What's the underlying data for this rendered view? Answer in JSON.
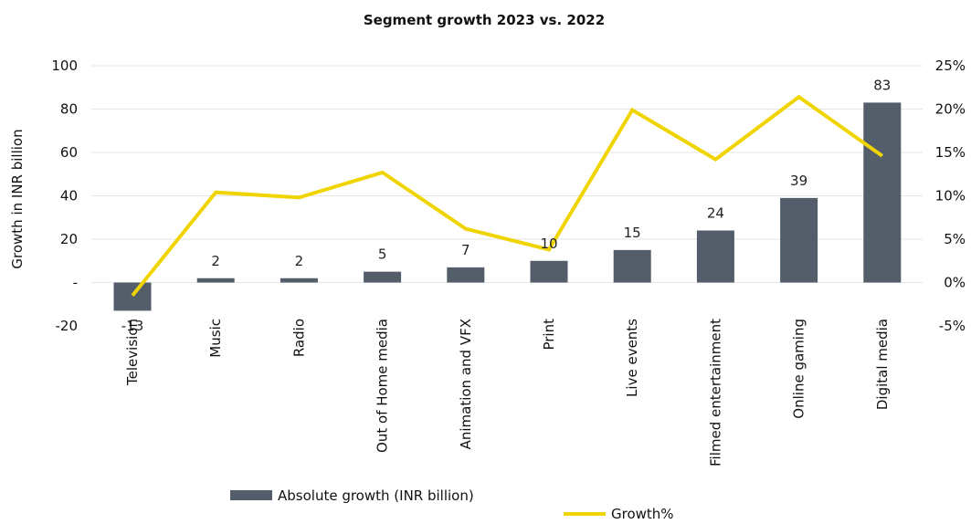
{
  "chart_data": {
    "type": "bar",
    "title": "Segment growth 2023 vs. 2022",
    "ylabel": "Growth in INR billion",
    "categories": [
      "Television",
      "Music",
      "Radio",
      "Out of Home media",
      "Animation and VFX",
      "Print",
      "Live events",
      "Filmed entertainment",
      "Online gaming",
      "Digital media"
    ],
    "series": [
      {
        "name": "Absolute growth (INR billion)",
        "type": "bar",
        "axis": "left",
        "values": [
          -13,
          2,
          2,
          5,
          7,
          10,
          15,
          24,
          39,
          83
        ],
        "data_labels": [
          "-13",
          "2",
          "2",
          "5",
          "7",
          "10",
          "15",
          "24",
          "39",
          "83"
        ],
        "color": "#535e6a"
      },
      {
        "name": "Growth%",
        "type": "line",
        "axis": "right",
        "values": [
          -1.5,
          10.4,
          9.8,
          12.7,
          6.2,
          3.8,
          19.9,
          14.2,
          21.4,
          14.6
        ],
        "color": "#f0d400"
      }
    ],
    "left_axis": {
      "min": -20,
      "max": 100,
      "ticks": [
        -20,
        0,
        20,
        40,
        60,
        80,
        100
      ],
      "tick_labels": [
        "-20",
        "-",
        "20",
        "40",
        "60",
        "80",
        "100"
      ]
    },
    "right_axis": {
      "min": -5,
      "max": 25,
      "ticks": [
        -5,
        0,
        5,
        10,
        15,
        20,
        25
      ],
      "tick_labels": [
        "-5%",
        "0%",
        "5%",
        "10%",
        "15%",
        "20%",
        "25%"
      ]
    },
    "grid": true,
    "legend_position": "bottom"
  }
}
